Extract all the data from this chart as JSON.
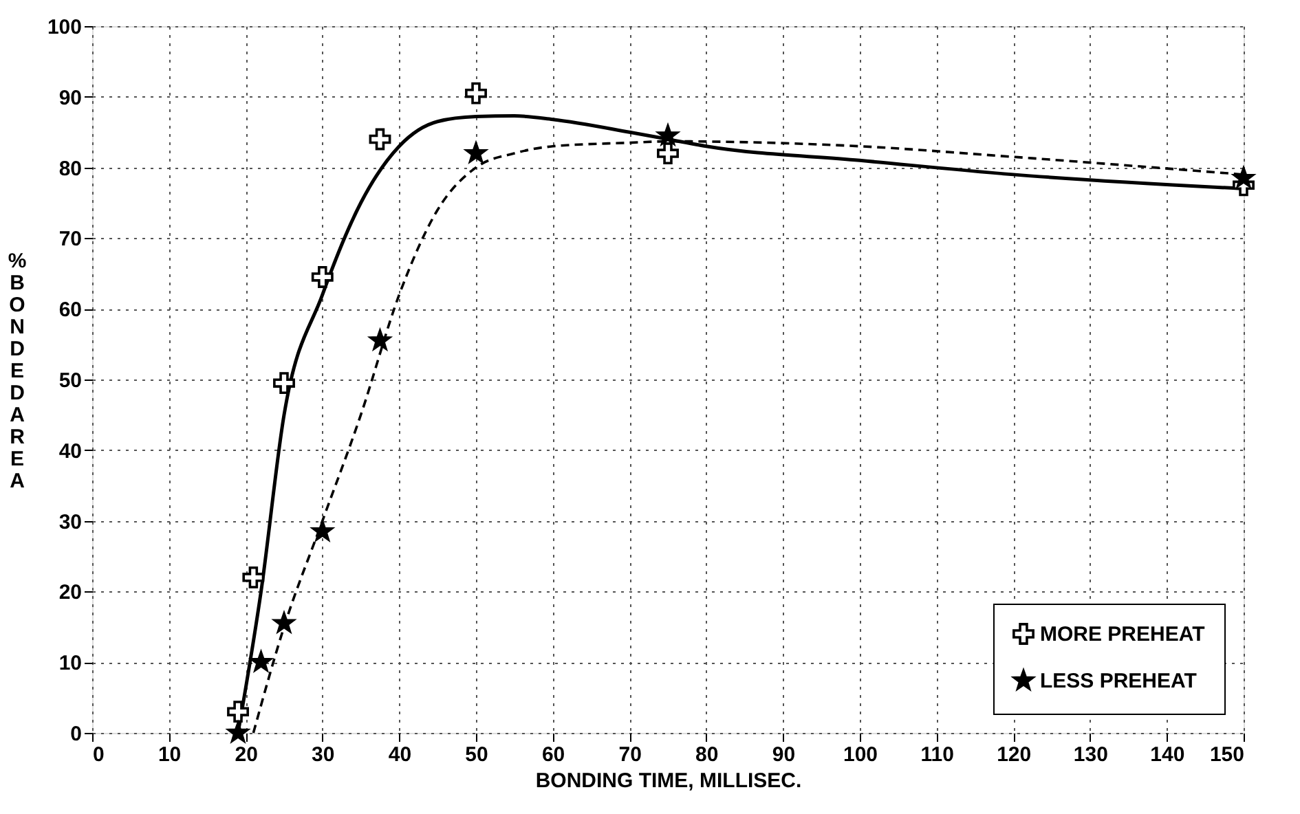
{
  "chart_data": {
    "type": "scatter",
    "xlabel": "BONDING TIME, MILLISEC.",
    "ylabel": "% BONDED AREA",
    "xlim": [
      0,
      150
    ],
    "xticks": [
      0,
      10,
      20,
      30,
      40,
      50,
      60,
      70,
      80,
      90,
      100,
      110,
      120,
      130,
      140,
      150
    ],
    "ylim": [
      0,
      100
    ],
    "yticks": [
      0,
      10,
      20,
      30,
      40,
      50,
      60,
      70,
      80,
      90,
      100
    ],
    "grid": true,
    "legend": "bottom right",
    "series": [
      {
        "name": "MORE PREHEAT",
        "marker": "cross",
        "color": "#000000",
        "x": [
          19,
          21,
          25,
          30,
          37.5,
          50,
          75,
          150
        ],
        "values": [
          3,
          22,
          49.5,
          64.5,
          84,
          90.5,
          82,
          77.5
        ]
      },
      {
        "name": "LESS PREHEAT",
        "marker": "star",
        "color": "#000000",
        "x": [
          19,
          22,
          25,
          30,
          37.5,
          50,
          75,
          150
        ],
        "values": [
          0,
          10,
          15.5,
          28.5,
          55.5,
          82,
          84.5,
          78.5
        ]
      },
      {
        "type": "line",
        "line_style": "solid",
        "marker": "none",
        "color": "#000000",
        "x": [
          19,
          22,
          25,
          30,
          35,
          40,
          45,
          50,
          55,
          60,
          70,
          75,
          80,
          100,
          120,
          150
        ],
        "values": [
          0,
          20,
          45,
          62,
          75,
          83,
          86.5,
          87.2,
          87.3,
          86.8,
          85,
          84,
          83,
          81,
          79,
          77
        ]
      },
      {
        "type": "line",
        "line_style": "dashed",
        "marker": "none",
        "color": "#000000",
        "x": [
          21,
          25,
          30,
          35,
          40,
          45,
          50,
          55,
          60,
          70,
          75,
          100,
          120,
          150
        ],
        "values": [
          0,
          15,
          30,
          45,
          62,
          74,
          80,
          82,
          83,
          83.5,
          83.7,
          83,
          81.5,
          79
        ]
      }
    ]
  }
}
